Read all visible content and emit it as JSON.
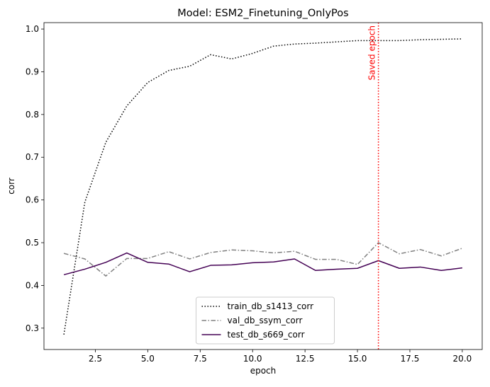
{
  "chart_data": {
    "type": "line",
    "title": "Model: ESM2_Finetuning_OnlyPos",
    "xlabel": "epoch",
    "ylabel": "corr",
    "xlim": [
      0.05,
      20.95
    ],
    "ylim": [
      0.25,
      1.015
    ],
    "xticks": [
      2.5,
      5.0,
      7.5,
      10.0,
      12.5,
      15.0,
      17.5,
      20.0
    ],
    "xtick_labels": [
      "2.5",
      "5.0",
      "7.5",
      "10.0",
      "12.5",
      "15.0",
      "17.5",
      "20.0"
    ],
    "yticks": [
      0.3,
      0.4,
      0.5,
      0.6,
      0.7,
      0.8,
      0.9,
      1.0
    ],
    "ytick_labels": [
      "0.3",
      "0.4",
      "0.5",
      "0.6",
      "0.7",
      "0.8",
      "0.9",
      "1.0"
    ],
    "x": [
      1,
      2,
      3,
      4,
      5,
      6,
      7,
      8,
      9,
      10,
      11,
      12,
      13,
      14,
      15,
      16,
      17,
      18,
      19,
      20
    ],
    "series": [
      {
        "name": "train_db_s1413_corr",
        "color": "#000000",
        "style": "dotted",
        "values": [
          0.285,
          0.595,
          0.735,
          0.82,
          0.875,
          0.903,
          0.913,
          0.94,
          0.93,
          0.943,
          0.96,
          0.965,
          0.967,
          0.97,
          0.973,
          0.973,
          0.973,
          0.975,
          0.976,
          0.977
        ]
      },
      {
        "name": "val_db_ssym_corr",
        "color": "#808080",
        "style": "dashdot",
        "values": [
          0.475,
          0.462,
          0.422,
          0.463,
          0.463,
          0.479,
          0.462,
          0.477,
          0.483,
          0.481,
          0.476,
          0.48,
          0.461,
          0.461,
          0.449,
          0.5,
          0.474,
          0.484,
          0.469,
          0.487
        ]
      },
      {
        "name": "test_db_s669_corr",
        "color": "#440154",
        "style": "solid",
        "values": [
          0.425,
          0.438,
          0.454,
          0.476,
          0.454,
          0.45,
          0.432,
          0.447,
          0.448,
          0.453,
          0.455,
          0.462,
          0.435,
          0.438,
          0.44,
          0.458,
          0.44,
          0.443,
          0.435,
          0.441
        ]
      }
    ],
    "vline": {
      "x": 16,
      "color": "#ff0000",
      "style": "dotted",
      "label": "Saved epoch"
    },
    "legend_position": "lower-center",
    "grid": false
  }
}
